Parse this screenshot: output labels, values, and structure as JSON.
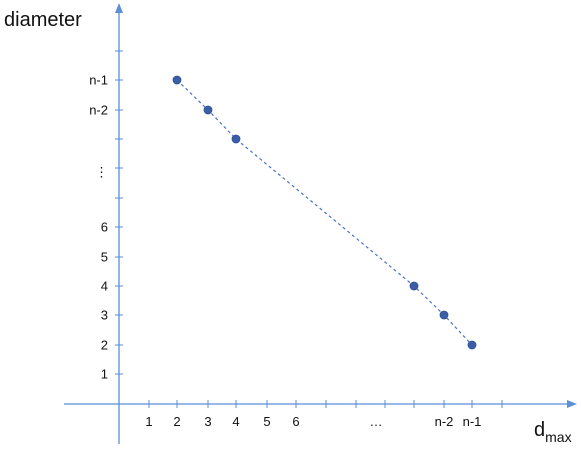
{
  "chart_data": {
    "type": "line",
    "ylabel": "diameter",
    "xlabel": {
      "base": "d",
      "subscript": "max"
    },
    "x_ticks": [
      "1",
      "2",
      "3",
      "4",
      "5",
      "6",
      "…",
      "n-2",
      "n-1"
    ],
    "y_ticks": [
      "1",
      "2",
      "3",
      "4",
      "5",
      "6",
      "⋮",
      "n-2",
      "n-1"
    ],
    "series": [
      {
        "points": [
          {
            "x": "2",
            "y": "n-1"
          },
          {
            "x": "3",
            "y": "n-2"
          },
          {
            "x": "4",
            "y": "n-3"
          },
          {
            "x": "n-3",
            "y": "4"
          },
          {
            "x": "n-2",
            "y": "3"
          },
          {
            "x": "n-1",
            "y": "2"
          }
        ],
        "line_style": "dashed",
        "color": "#4a72c4",
        "marker_color": "#3a5fa8"
      }
    ],
    "axis_color": "#5b8fd6",
    "grid": false
  }
}
